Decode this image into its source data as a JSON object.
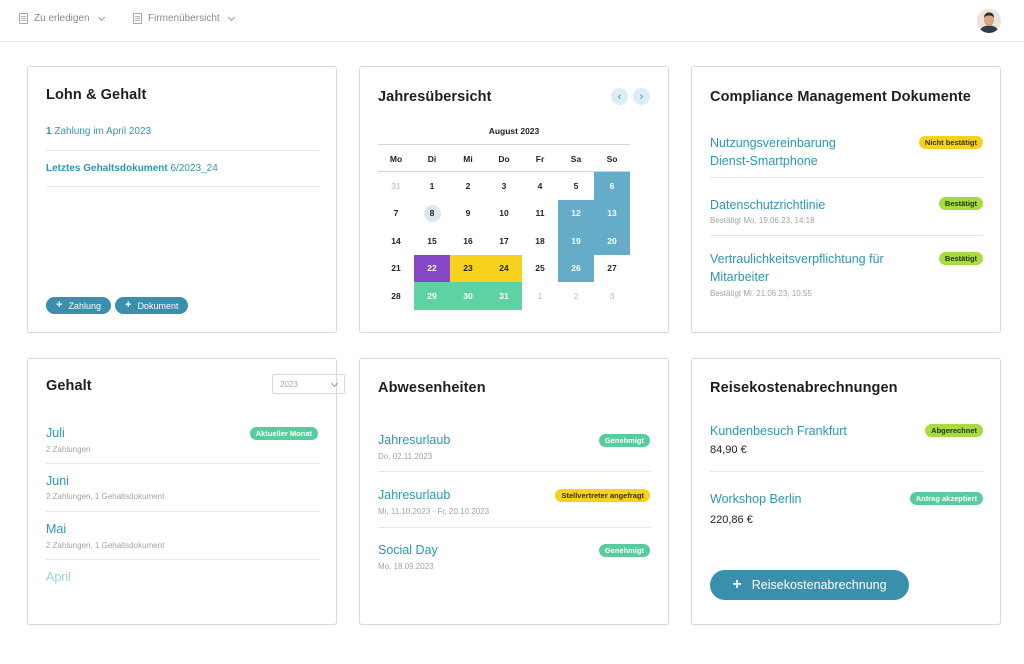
{
  "topbar": {
    "nav1": "Zu erledigen",
    "nav2": "Firmenübersicht"
  },
  "lohn": {
    "title": "Lohn & Gehalt",
    "payment_count": "1",
    "payment_text": " Zahlung im April 2023",
    "last_doc_label": "Letztes Gehaltsdokument",
    "last_doc_value": " 6/2023_24",
    "btn_payment": "Zahlung",
    "btn_document": "Dokument"
  },
  "calendar": {
    "title": "Jahresübersicht",
    "month": "August 2023",
    "weekdays": [
      "Mo",
      "Di",
      "Mi",
      "Do",
      "Fr",
      "Sa",
      "So"
    ],
    "prev": "‹",
    "next": "›",
    "weeks": [
      [
        "31",
        "1",
        "2",
        "3",
        "4",
        "5",
        "6"
      ],
      [
        "7",
        "8",
        "9",
        "10",
        "11",
        "12",
        "13"
      ],
      [
        "14",
        "15",
        "16",
        "17",
        "18",
        "19",
        "20"
      ],
      [
        "21",
        "22",
        "23",
        "24",
        "25",
        "26",
        "27"
      ],
      [
        "28",
        "29",
        "30",
        "31",
        "1",
        "2",
        "3"
      ]
    ],
    "styles": [
      [
        "muted",
        "",
        "",
        "",
        "",
        "",
        "blue"
      ],
      [
        "",
        "today",
        "",
        "",
        "",
        "blue",
        "blue"
      ],
      [
        "",
        "",
        "",
        "",
        "",
        "blue",
        "blue"
      ],
      [
        "",
        "purple",
        "yellow",
        "yellow",
        "",
        "blue",
        ""
      ],
      [
        "",
        "green",
        "green",
        "green",
        "muted",
        "muted",
        "muted"
      ]
    ]
  },
  "compliance": {
    "title": "Compliance Management Dokumente",
    "items": [
      {
        "title_line1": "Nutzungsvereinbarung",
        "title_line2": "Dienst-Smartphone",
        "sub": "",
        "badge": "Nicht bestätigt",
        "badge_color": "#f4d31a"
      },
      {
        "title_line1": "Datenschutzrichtlinie",
        "title_line2": "",
        "sub": "Bestätigt Mo. 19.06.23, 14:18",
        "badge": "Bestätigt",
        "badge_color": "#a6dc3f"
      },
      {
        "title_line1": "Vertraulichkeitsverpflichtung für",
        "title_line2": "Mitarbeiter",
        "sub": "Bestätigt Mi. 21.06.23, 10:55",
        "badge": "Bestätigt",
        "badge_color": "#a6dc3f"
      }
    ]
  },
  "gehalt": {
    "title": "Gehalt",
    "year_select": "2023",
    "months": [
      {
        "name": "Juli",
        "sub": "2 Zahlungen",
        "badge": "Aktueller Monat"
      },
      {
        "name": "Juni",
        "sub": "2 Zahlungen, 1 Gehaltsdokument",
        "badge": ""
      },
      {
        "name": "Mai",
        "sub": "2 Zahlungen, 1 Gehaltsdokument",
        "badge": ""
      },
      {
        "name": "April",
        "sub": "",
        "badge": ""
      }
    ]
  },
  "abwesenheiten": {
    "title": "Abwesenheiten",
    "items": [
      {
        "name": "Jahresurlaub",
        "date": "Do, 02.11.2023",
        "badge": "Genehmigt"
      },
      {
        "name": "Jahresurlaub",
        "date": "Mi, 11.10.2023 - Fr, 20.10.2023",
        "badge": "Stellvertreter angefragt"
      },
      {
        "name": "Social Day",
        "date": "Mo, 18.09.2023",
        "badge": "Genehmigt"
      }
    ]
  },
  "reisekosten": {
    "title": "Reisekostenabrechnungen",
    "items": [
      {
        "name": "Kundenbesuch Frankfurt",
        "amount": "84,90 €",
        "badge": "Abgerechnet"
      },
      {
        "name": "Workshop Berlin",
        "amount": "220,86 €",
        "badge": "Antrag akzeptiert"
      }
    ],
    "button": "Reisekostenabrechnung"
  },
  "colors": {
    "accent": "#2e96b1",
    "button": "#3a8fac",
    "yellow": "#f4d31a",
    "lime": "#a6dc3f",
    "green": "#57cc9c",
    "purple": "#8847c7",
    "calendar_blue": "#65acc9"
  }
}
